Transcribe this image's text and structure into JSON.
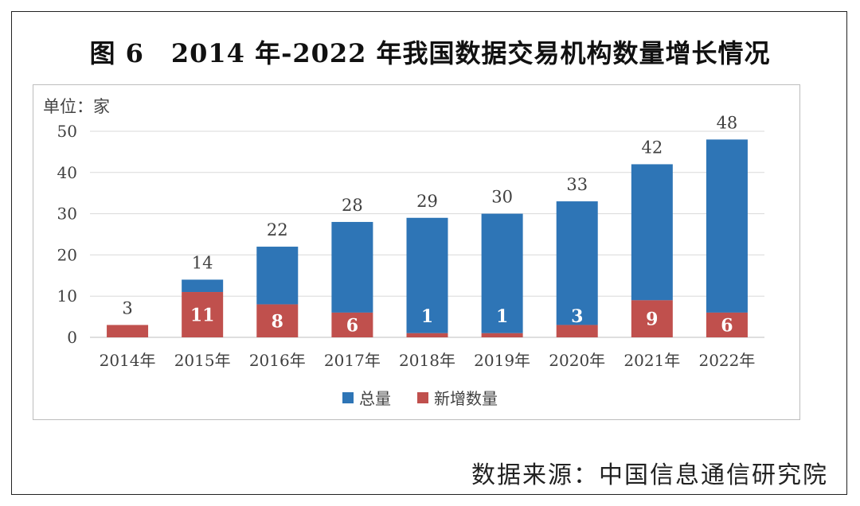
{
  "title": {
    "prefix": "图 6",
    "text": "2014 年-2022 年我国数据交易机构数量增长情况"
  },
  "source": "数据来源：中国信息通信研究院",
  "colors": {
    "total": "#2E75B6",
    "new": "#C0504D",
    "grid": "#d9d9d9",
    "text": "#404040"
  },
  "chart_data": {
    "type": "bar",
    "unit_label": "单位：家",
    "categories": [
      "2014年",
      "2015年",
      "2016年",
      "2017年",
      "2018年",
      "2019年",
      "2020年",
      "2021年",
      "2022年"
    ],
    "series": [
      {
        "name": "总量",
        "values": [
          3,
          14,
          22,
          28,
          29,
          30,
          33,
          42,
          48
        ]
      },
      {
        "name": "新增数量",
        "values": [
          3,
          11,
          8,
          6,
          1,
          1,
          3,
          9,
          6
        ]
      }
    ],
    "total_labels": [
      "3",
      "14",
      "22",
      "28",
      "29",
      "30",
      "33",
      "42",
      "48"
    ],
    "new_labels": [
      "",
      "11",
      "8",
      "6",
      "1",
      "1",
      "3",
      "9",
      "6"
    ],
    "y_ticks": [
      "0",
      "10",
      "20",
      "30",
      "40",
      "50"
    ],
    "ylim": [
      0,
      50
    ],
    "grid": true,
    "legend_position": "bottom"
  }
}
